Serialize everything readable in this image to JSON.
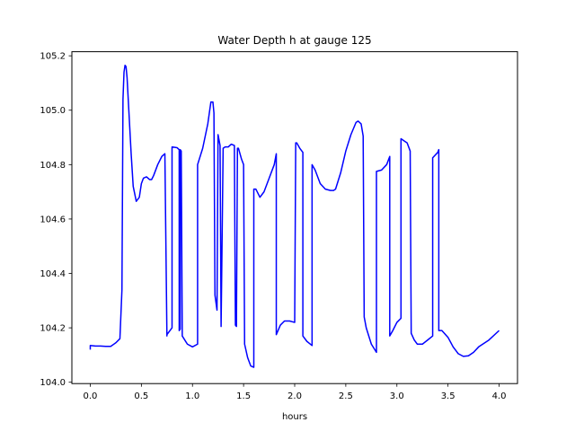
{
  "chart_data": {
    "type": "line",
    "title": "Water Depth h at gauge 125",
    "xlabel": "hours",
    "ylabel": "",
    "xlim": [
      -0.18,
      4.18
    ],
    "ylim": [
      103.995,
      105.215
    ],
    "xticks": [
      0.0,
      0.5,
      1.0,
      1.5,
      2.0,
      2.5,
      3.0,
      3.5,
      4.0
    ],
    "xtick_labels": [
      "0.0",
      "0.5",
      "1.0",
      "1.5",
      "2.0",
      "2.5",
      "3.0",
      "3.5",
      "4.0"
    ],
    "yticks": [
      104.0,
      104.2,
      104.4,
      104.6,
      104.8,
      105.0,
      105.2
    ],
    "ytick_labels": [
      "104.0",
      "104.2",
      "104.4",
      "104.6",
      "104.8",
      "105.0",
      "105.2"
    ],
    "grid": false,
    "series": [
      {
        "name": "",
        "color": "#0000ff",
        "x": [
          0.0,
          0.0,
          0.05,
          0.1,
          0.15,
          0.2,
          0.25,
          0.29,
          0.31,
          0.32,
          0.33,
          0.34,
          0.35,
          0.36,
          0.38,
          0.4,
          0.42,
          0.45,
          0.48,
          0.5,
          0.52,
          0.55,
          0.58,
          0.6,
          0.62,
          0.66,
          0.7,
          0.73,
          0.75,
          0.75,
          0.8,
          0.8,
          0.85,
          0.87,
          0.87,
          0.88,
          0.88,
          0.89,
          0.9,
          0.95,
          1.0,
          1.05,
          1.05,
          1.1,
          1.15,
          1.18,
          1.2,
          1.21,
          1.22,
          1.24,
          1.25,
          1.26,
          1.27,
          1.28,
          1.3,
          1.32,
          1.35,
          1.38,
          1.41,
          1.42,
          1.43,
          1.44,
          1.45,
          1.48,
          1.5,
          1.51,
          1.54,
          1.57,
          1.6,
          1.6,
          1.62,
          1.66,
          1.7,
          1.75,
          1.8,
          1.82,
          1.82,
          1.86,
          1.9,
          1.95,
          2.0,
          2.01,
          2.02,
          2.05,
          2.08,
          2.08,
          2.12,
          2.17,
          2.17,
          2.2,
          2.25,
          2.3,
          2.35,
          2.38,
          2.4,
          2.45,
          2.5,
          2.55,
          2.6,
          2.62,
          2.65,
          2.67,
          2.68,
          2.7,
          2.75,
          2.8,
          2.8,
          2.85,
          2.9,
          2.93,
          2.93,
          2.96,
          3.0,
          3.04,
          3.04,
          3.08,
          3.1,
          3.13,
          3.14,
          3.17,
          3.2,
          3.25,
          3.3,
          3.35,
          3.35,
          3.4,
          3.41,
          3.41,
          3.44,
          3.5,
          3.55,
          3.6,
          3.65,
          3.7,
          3.75,
          3.8,
          3.9,
          4.0
        ],
        "y": [
          104.12,
          104.135,
          104.133,
          104.133,
          104.132,
          104.132,
          104.145,
          104.16,
          104.34,
          105.04,
          105.14,
          105.165,
          105.16,
          105.12,
          104.98,
          104.84,
          104.72,
          104.665,
          104.68,
          104.73,
          104.75,
          104.755,
          104.745,
          104.745,
          104.76,
          104.8,
          104.83,
          104.84,
          104.17,
          104.175,
          104.2,
          104.865,
          104.862,
          104.855,
          104.19,
          104.195,
          104.855,
          104.85,
          104.17,
          104.14,
          104.13,
          104.14,
          104.8,
          104.86,
          104.95,
          105.03,
          105.03,
          104.99,
          104.32,
          104.265,
          104.91,
          104.89,
          104.87,
          104.205,
          104.86,
          104.865,
          104.865,
          104.875,
          104.87,
          104.21,
          104.205,
          104.86,
          104.86,
          104.82,
          104.8,
          104.14,
          104.09,
          104.06,
          104.055,
          104.71,
          104.71,
          104.68,
          104.7,
          104.75,
          104.8,
          104.84,
          104.175,
          104.21,
          104.225,
          104.225,
          104.22,
          104.88,
          104.88,
          104.86,
          104.845,
          104.17,
          104.15,
          104.135,
          104.8,
          104.78,
          104.73,
          104.71,
          104.705,
          104.705,
          104.71,
          104.77,
          104.85,
          104.91,
          104.955,
          104.96,
          104.95,
          104.905,
          104.24,
          104.2,
          104.14,
          104.11,
          104.775,
          104.78,
          104.8,
          104.83,
          104.17,
          104.19,
          104.22,
          104.235,
          104.895,
          104.885,
          104.88,
          104.85,
          104.18,
          104.155,
          104.14,
          104.14,
          104.155,
          104.17,
          104.825,
          104.845,
          104.855,
          104.19,
          104.19,
          104.165,
          104.13,
          104.105,
          104.095,
          104.097,
          104.11,
          104.13,
          104.155,
          104.19
        ]
      }
    ]
  }
}
